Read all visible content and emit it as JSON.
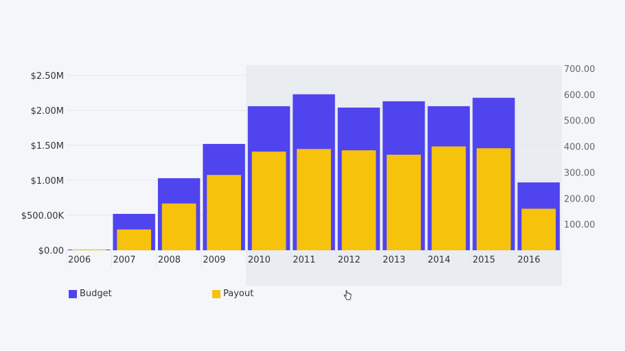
{
  "chart_data": {
    "type": "bar",
    "categories": [
      "2006",
      "2007",
      "2008",
      "2009",
      "2010",
      "2011",
      "2012",
      "2013",
      "2014",
      "2015",
      "2016"
    ],
    "series": [
      {
        "name": "Budget",
        "axis": "left",
        "color": "#5044ef",
        "values": [
          10000,
          520000,
          1030000,
          1520000,
          2060000,
          2230000,
          2040000,
          2130000,
          2060000,
          2180000,
          970000
        ]
      },
      {
        "name": "Payout",
        "axis": "right",
        "color": "#f7c20c",
        "values": [
          3,
          80,
          180,
          290,
          380,
          390,
          385,
          368,
          400,
          393,
          160
        ]
      }
    ],
    "left_axis": {
      "min": 0,
      "max": 2500000,
      "ticks": [
        0,
        500000,
        1000000,
        1500000,
        2000000,
        2500000
      ],
      "tick_labels": [
        "$0.00",
        "$500.00K",
        "$1.00M",
        "$1.50M",
        "$2.00M",
        "$2.50M"
      ]
    },
    "right_axis": {
      "min": 0,
      "max": 700,
      "ticks": [
        100,
        200,
        300,
        400,
        500,
        600,
        700
      ],
      "tick_labels": [
        "100.00",
        "200.00",
        "300.00",
        "400.00",
        "500.00",
        "600.00",
        "700.00"
      ]
    },
    "title": "",
    "xlabel": "",
    "ylabel": "",
    "legend": {
      "position": "bottom-left",
      "labels": [
        "Budget",
        "Payout"
      ]
    }
  },
  "colors": {
    "budget": "#5044ef",
    "payout": "#f7c20c"
  },
  "cursor_icon": "hand-cursor-icon"
}
